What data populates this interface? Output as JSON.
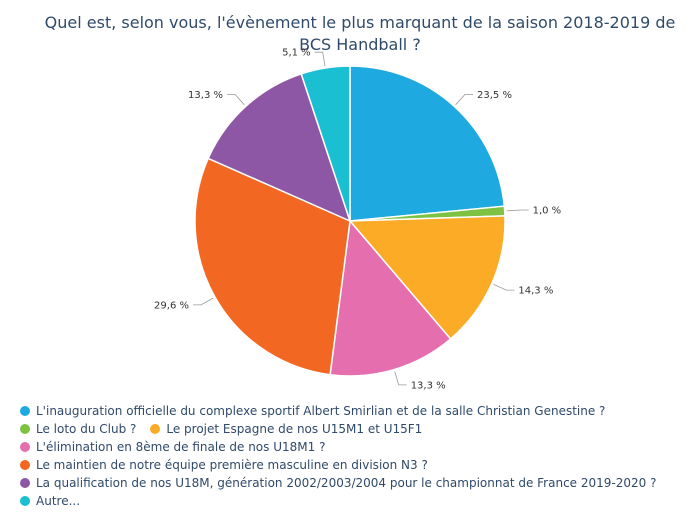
{
  "chart_data": {
    "type": "pie",
    "title": "Quel est, selon vous, l'évènement le plus marquant de la saison 2018-2019 de BCS Handball ?",
    "slices": [
      {
        "name": "L'inauguration officielle du complexe sportif Albert Smirlian et de la salle Christian Genestine ?",
        "value": 23.5,
        "label": "23,5 %",
        "color": "#1fa9e1"
      },
      {
        "name": "Le loto du Club ?",
        "value": 1.0,
        "label": "1,0 %",
        "color": "#7dc242"
      },
      {
        "name": "Le projet Espagne de nos U15M1 et U15F1",
        "value": 14.3,
        "label": "14,3 %",
        "color": "#fbab26"
      },
      {
        "name": "L'élimination en 8ème de finale de nos U18M1 ?",
        "value": 13.3,
        "label": "13,3 %",
        "color": "#e56fae"
      },
      {
        "name": "Le maintien de notre équipe première masculine en division N3 ?",
        "value": 29.6,
        "label": "29,6 %",
        "color": "#f26722"
      },
      {
        "name": "La qualification de nos U18M, génération 2002/2003/2004 pour le championnat de France 2019-2020 ?",
        "value": 13.3,
        "label": "13,3 %",
        "color": "#8e57a5"
      },
      {
        "name": "Autre...",
        "value": 5.1,
        "label": "5,1 %",
        "color": "#1bbfd2"
      }
    ],
    "legend_position": "bottom"
  }
}
